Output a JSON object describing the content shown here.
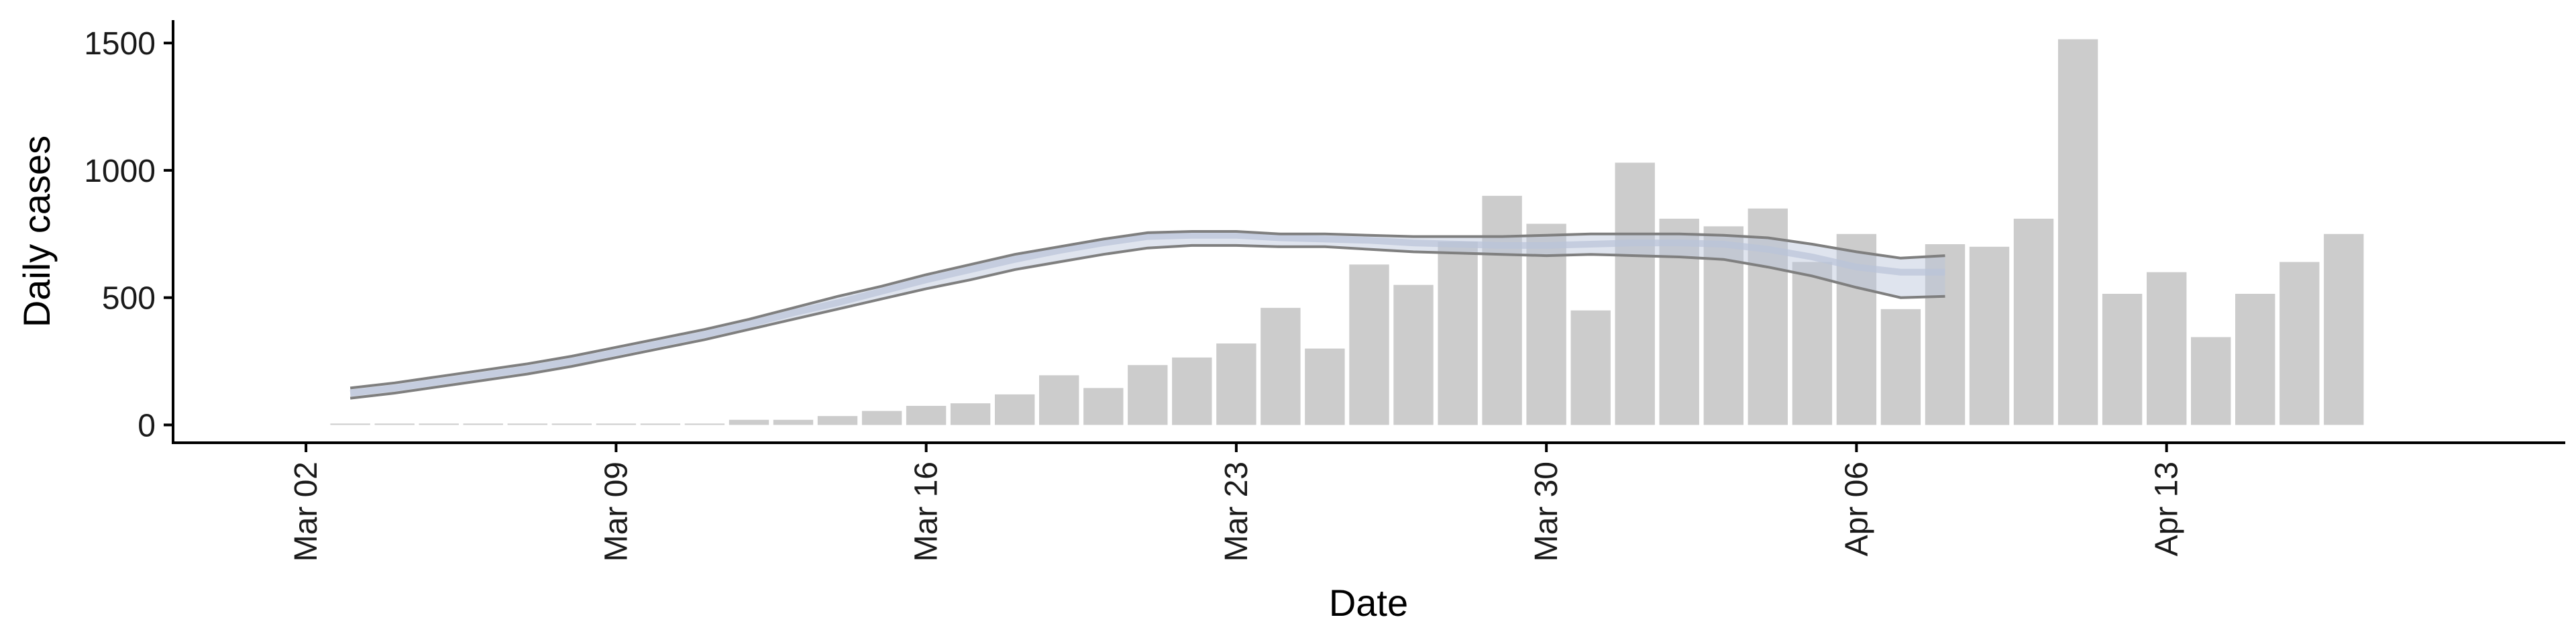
{
  "chart_data": {
    "type": "bar",
    "xlabel": "Date",
    "ylabel": "Daily cases",
    "ylim": [
      -70,
      1590
    ],
    "yticks": [
      0,
      500,
      1000,
      1500
    ],
    "x_range": [
      "2020-02-28",
      "2020-04-22"
    ],
    "x_ticks": [
      {
        "date": "2020-03-02",
        "label": "Mar 02"
      },
      {
        "date": "2020-03-09",
        "label": "Mar 09"
      },
      {
        "date": "2020-03-16",
        "label": "Mar 16"
      },
      {
        "date": "2020-03-23",
        "label": "Mar 23"
      },
      {
        "date": "2020-03-30",
        "label": "Mar 30"
      },
      {
        "date": "2020-04-06",
        "label": "Apr 06"
      },
      {
        "date": "2020-04-13",
        "label": "Apr 13"
      }
    ],
    "bars": {
      "color": "#cccccc",
      "x": [
        "2020-03-03",
        "2020-03-04",
        "2020-03-05",
        "2020-03-06",
        "2020-03-07",
        "2020-03-08",
        "2020-03-09",
        "2020-03-10",
        "2020-03-11",
        "2020-03-12",
        "2020-03-13",
        "2020-03-14",
        "2020-03-15",
        "2020-03-16",
        "2020-03-17",
        "2020-03-18",
        "2020-03-19",
        "2020-03-20",
        "2020-03-21",
        "2020-03-22",
        "2020-03-23",
        "2020-03-24",
        "2020-03-25",
        "2020-03-26",
        "2020-03-27",
        "2020-03-28",
        "2020-03-29",
        "2020-03-30",
        "2020-03-31",
        "2020-04-01",
        "2020-04-02",
        "2020-04-03",
        "2020-04-04",
        "2020-04-05",
        "2020-04-06",
        "2020-04-07",
        "2020-04-08",
        "2020-04-09",
        "2020-04-10",
        "2020-04-11",
        "2020-04-12",
        "2020-04-13",
        "2020-04-14",
        "2020-04-15",
        "2020-04-16",
        "2020-04-17"
      ],
      "values": [
        2,
        2,
        0,
        2,
        2,
        5,
        5,
        5,
        2,
        20,
        20,
        35,
        55,
        75,
        85,
        120,
        195,
        145,
        235,
        265,
        320,
        460,
        300,
        630,
        550,
        720,
        900,
        790,
        450,
        1030,
        810,
        780,
        850,
        640,
        750,
        455,
        710,
        700,
        810,
        1515,
        515,
        600,
        345,
        515,
        640,
        750
      ]
    },
    "estimate": {
      "x": [
        "2020-03-03",
        "2020-03-04",
        "2020-03-05",
        "2020-03-06",
        "2020-03-07",
        "2020-03-08",
        "2020-03-09",
        "2020-03-10",
        "2020-03-11",
        "2020-03-12",
        "2020-03-13",
        "2020-03-14",
        "2020-03-15",
        "2020-03-16",
        "2020-03-17",
        "2020-03-18",
        "2020-03-19",
        "2020-03-20",
        "2020-03-21",
        "2020-03-22",
        "2020-03-23",
        "2020-03-24",
        "2020-03-25",
        "2020-03-26",
        "2020-03-27",
        "2020-03-28",
        "2020-03-29",
        "2020-03-30",
        "2020-03-31",
        "2020-04-01",
        "2020-04-02",
        "2020-04-03",
        "2020-04-04",
        "2020-04-05",
        "2020-04-06",
        "2020-04-07",
        "2020-04-08"
      ],
      "median": [
        125,
        145,
        170,
        195,
        220,
        250,
        285,
        320,
        355,
        395,
        440,
        480,
        525,
        570,
        610,
        650,
        685,
        715,
        740,
        745,
        745,
        735,
        730,
        725,
        715,
        710,
        705,
        705,
        710,
        715,
        715,
        710,
        690,
        660,
        620,
        600,
        600
      ],
      "lower": [
        105,
        125,
        150,
        175,
        200,
        230,
        265,
        300,
        335,
        375,
        415,
        455,
        495,
        535,
        570,
        610,
        640,
        670,
        695,
        705,
        705,
        700,
        700,
        690,
        680,
        675,
        670,
        665,
        670,
        665,
        660,
        650,
        620,
        585,
        540,
        500,
        505
      ],
      "upper": [
        145,
        165,
        190,
        215,
        240,
        270,
        305,
        340,
        375,
        415,
        460,
        505,
        545,
        590,
        630,
        670,
        700,
        730,
        755,
        760,
        760,
        750,
        750,
        745,
        740,
        740,
        740,
        745,
        750,
        750,
        750,
        745,
        735,
        710,
        680,
        655,
        665
      ],
      "band_color": "#b9c3d9",
      "edge_color": "#7f7f7f"
    }
  }
}
